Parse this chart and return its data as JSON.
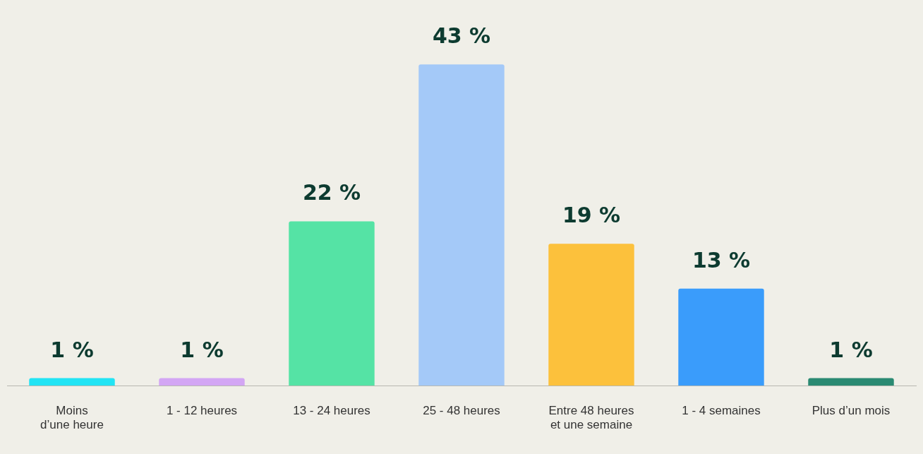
{
  "chart_data": {
    "type": "bar",
    "categories": [
      "Moins\nd’une heure",
      "1 - 12 heures",
      "13 - 24 heures",
      "25 - 48 heures",
      "Entre 48 heures\net une semaine",
      "1 - 4 semaines",
      "Plus d’un mois"
    ],
    "values": [
      1,
      1,
      22,
      43,
      19,
      13,
      1
    ],
    "colors": [
      "#22e4f4",
      "#d3a6f4",
      "#55e3a5",
      "#a4c9f8",
      "#fcc13c",
      "#3a9cfb",
      "#2a8a72"
    ],
    "value_labels": [
      "1 %",
      "1 %",
      "22 %",
      "43 %",
      "19 %",
      "13 %",
      "1 %"
    ],
    "grid": false,
    "legend": false
  }
}
